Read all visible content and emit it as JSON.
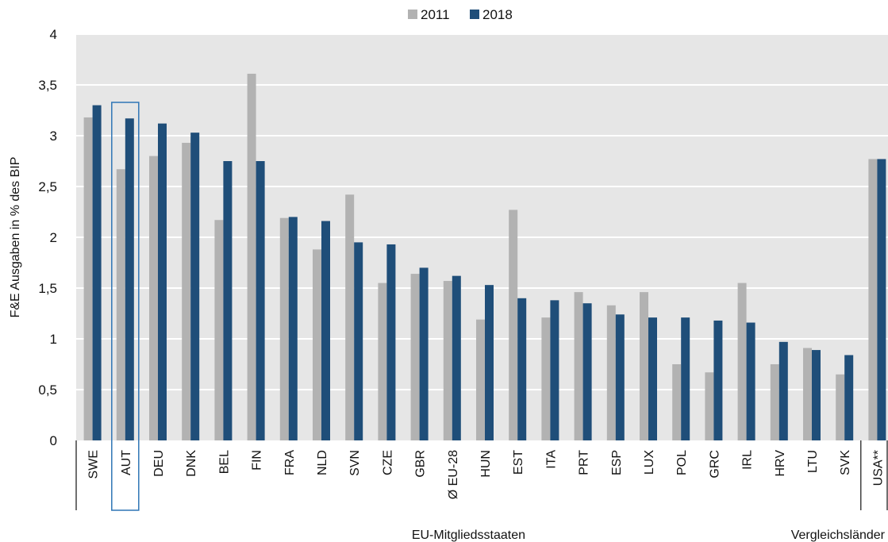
{
  "chart_data": {
    "type": "bar",
    "ylabel": "F&E Ausgaben in % des BIP",
    "ylim": [
      0,
      4
    ],
    "y_ticks": [
      "0",
      "0,5",
      "1",
      "1,5",
      "2",
      "2,5",
      "3",
      "3,5",
      "4"
    ],
    "grid": true,
    "legend_position": "top-center",
    "colors": {
      "2011": "#b2b2b2",
      "2018": "#1f4e79",
      "plot_bg": "#e6e6e6",
      "highlight": "#2f75b5"
    },
    "categories": [
      "SWE",
      "AUT",
      "DEU",
      "DNK",
      "BEL",
      "FIN",
      "FRA",
      "NLD",
      "SVN",
      "CZE",
      "GBR",
      "Ø EU-28",
      "HUN",
      "EST",
      "ITA",
      "PRT",
      "ESP",
      "LUX",
      "POL",
      "GRC",
      "IRL",
      "HRV",
      "LTU",
      "SVK",
      "USA**"
    ],
    "series": [
      {
        "name": "2011",
        "values": [
          3.18,
          2.67,
          2.8,
          2.93,
          2.17,
          3.61,
          2.19,
          1.88,
          2.42,
          1.55,
          1.64,
          1.57,
          1.19,
          2.27,
          1.21,
          1.46,
          1.33,
          1.46,
          0.75,
          0.67,
          1.55,
          0.75,
          0.91,
          0.65,
          2.77
        ]
      },
      {
        "name": "2018",
        "values": [
          3.3,
          3.17,
          3.12,
          3.03,
          2.75,
          2.75,
          2.2,
          2.16,
          1.95,
          1.93,
          1.7,
          1.62,
          1.53,
          1.4,
          1.38,
          1.35,
          1.24,
          1.21,
          1.21,
          1.18,
          1.16,
          0.97,
          0.89,
          0.84,
          2.77
        ]
      }
    ],
    "highlighted_category": "AUT",
    "groups": [
      {
        "label": "EU-Mitgliedsstaaten",
        "from": 0,
        "to": 23
      },
      {
        "label": "Vergleichsländer",
        "from": 24,
        "to": 24
      }
    ]
  }
}
